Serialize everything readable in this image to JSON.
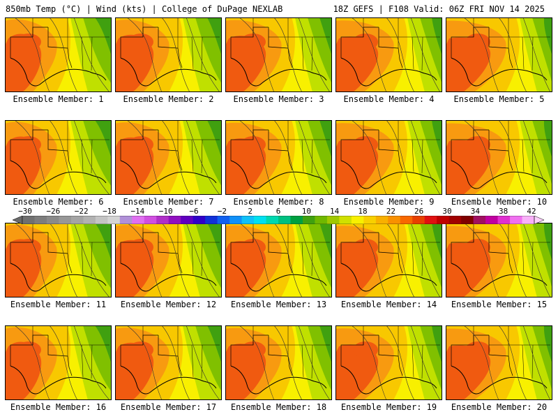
{
  "header": {
    "left": "850mb Temp (°C) | Wind (kts) | College of DuPage NEXLAB",
    "right": "18Z GEFS | F108 Valid: 06Z FRI NOV 14 2025"
  },
  "members": [
    "Ensemble Member: 1",
    "Ensemble Member: 2",
    "Ensemble Member: 3",
    "Ensemble Member: 4",
    "Ensemble Member: 5",
    "Ensemble Member: 6",
    "Ensemble Member: 7",
    "Ensemble Member: 8",
    "Ensemble Member: 9",
    "Ensemble Member: 10",
    "Ensemble Member: 11",
    "Ensemble Member: 12",
    "Ensemble Member: 13",
    "Ensemble Member: 14",
    "Ensemble Member: 15",
    "Ensemble Member: 16",
    "Ensemble Member: 17",
    "Ensemble Member: 18",
    "Ensemble Member: 19",
    "Ensemble Member: 20"
  ],
  "colorbar": {
    "labels": [
      "−30",
      "−26",
      "−22",
      "−18",
      "−14",
      "−10",
      "−6",
      "−2",
      "2",
      "6",
      "10",
      "14",
      "18",
      "22",
      "26",
      "30",
      "34",
      "38",
      "42"
    ],
    "colors": [
      "#707070",
      "#7d7d7d",
      "#8a8a8a",
      "#979797",
      "#a4a4a4",
      "#b2b2b2",
      "#c4c4c4",
      "#d4d4d4",
      "#b090d8",
      "#e070f0",
      "#d050e0",
      "#b030c8",
      "#9010c0",
      "#6000c0",
      "#3000c8",
      "#1030d8",
      "#1060f0",
      "#1090f8",
      "#10c0f8",
      "#00e0f0",
      "#00d8b0",
      "#00c080",
      "#00a040",
      "#40a010",
      "#70b800",
      "#a0c800",
      "#d0e000",
      "#f8f000",
      "#f8d000",
      "#f8b000",
      "#f89000",
      "#f86800",
      "#e84000",
      "#e01010",
      "#c00000",
      "#a00000",
      "#800000",
      "#a01060",
      "#c000a0",
      "#e030d0",
      "#f070f0",
      "#f8b0f8"
    ]
  },
  "map_colors": {
    "hot": "#f05a10",
    "warm": "#f89a10",
    "mild": "#f8c800",
    "cool": "#f8f000",
    "lime": "#c0e000",
    "green": "#80c000",
    "dgreen": "#40a010",
    "outline": "#000000"
  }
}
